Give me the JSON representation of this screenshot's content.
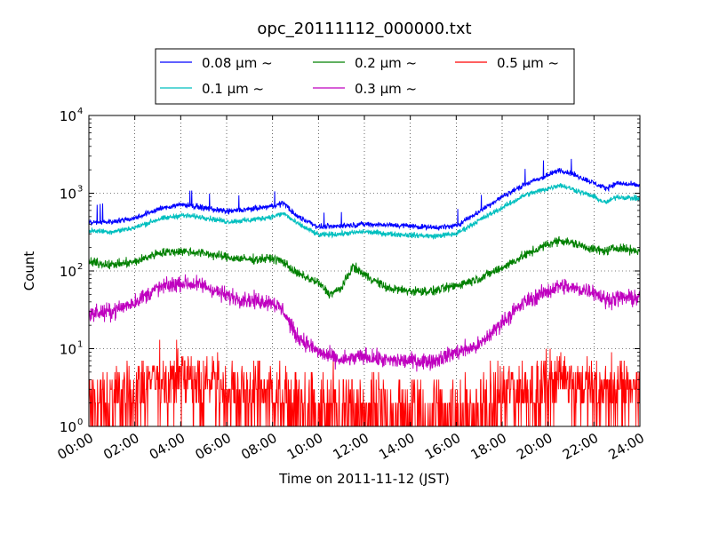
{
  "chart_data": {
    "type": "line",
    "title": "opc_20111112_000000.txt",
    "xlabel": "Time on 2011-11-12 (JST)",
    "ylabel": "Count",
    "xlim": [
      "00:00",
      "24:00"
    ],
    "ylim": [
      1,
      10000
    ],
    "yscale": "log",
    "grid": true,
    "legend_position": "top",
    "x_ticks": [
      "00:00",
      "02:00",
      "04:00",
      "06:00",
      "08:00",
      "10:00",
      "12:00",
      "14:00",
      "16:00",
      "18:00",
      "20:00",
      "22:00",
      "24:00"
    ],
    "y_ticks": [
      {
        "value": 1,
        "base": "10",
        "exp": "0"
      },
      {
        "value": 10,
        "base": "10",
        "exp": "1"
      },
      {
        "value": 100,
        "base": "10",
        "exp": "2"
      },
      {
        "value": 1000,
        "base": "10",
        "exp": "3"
      },
      {
        "value": 10000,
        "base": "10",
        "exp": "4"
      }
    ],
    "series": [
      {
        "name": "0.08 μm ~",
        "color": "#0000ff",
        "noise": 0.03,
        "x_hours": [
          0,
          1,
          2,
          3,
          4,
          5,
          6,
          7,
          8,
          8.5,
          9,
          10,
          11,
          12,
          13,
          14,
          15,
          16,
          17,
          18,
          19,
          20,
          20.5,
          21,
          22,
          22.5,
          23,
          24
        ],
        "values": [
          420,
          430,
          480,
          620,
          720,
          650,
          580,
          620,
          680,
          750,
          520,
          370,
          380,
          400,
          390,
          380,
          360,
          380,
          580,
          900,
          1300,
          1700,
          2000,
          1800,
          1350,
          1150,
          1350,
          1250
        ]
      },
      {
        "name": "0.1 μm ~",
        "color": "#00bfbf",
        "noise": 0.03,
        "x_hours": [
          0,
          1,
          2,
          3,
          4,
          5,
          6,
          7,
          8,
          8.5,
          9,
          10,
          11,
          12,
          13,
          14,
          15,
          16,
          17,
          18,
          19,
          20,
          20.5,
          21,
          22,
          22.5,
          23,
          24
        ],
        "values": [
          330,
          320,
          360,
          460,
          520,
          490,
          430,
          450,
          500,
          550,
          420,
          290,
          300,
          320,
          300,
          290,
          280,
          300,
          450,
          650,
          950,
          1150,
          1280,
          1150,
          900,
          750,
          900,
          850
        ]
      },
      {
        "name": "0.2 μm ~",
        "color": "#008000",
        "noise": 0.05,
        "x_hours": [
          0,
          1,
          2,
          3,
          4,
          5,
          6,
          7,
          8,
          8.5,
          9,
          10,
          10.5,
          11,
          11.5,
          12,
          13,
          14,
          15,
          16,
          17,
          18,
          19,
          20,
          20.5,
          21,
          22,
          22.5,
          23,
          24
        ],
        "values": [
          130,
          120,
          130,
          170,
          180,
          170,
          150,
          140,
          145,
          130,
          95,
          70,
          50,
          60,
          115,
          90,
          60,
          55,
          55,
          65,
          80,
          110,
          160,
          220,
          250,
          230,
          190,
          180,
          200,
          180
        ]
      },
      {
        "name": "0.3 μm ~",
        "color": "#bf00bf",
        "noise": 0.09,
        "x_hours": [
          0,
          1,
          2,
          3,
          4,
          5,
          6,
          7,
          8,
          8.5,
          9,
          10,
          11,
          12,
          13,
          14,
          15,
          16,
          17,
          18,
          19,
          20,
          20.5,
          21,
          22,
          22.5,
          23,
          24
        ],
        "values": [
          28,
          30,
          40,
          60,
          70,
          65,
          48,
          42,
          40,
          30,
          15,
          9,
          7,
          8,
          7,
          7,
          7,
          9,
          11,
          22,
          40,
          55,
          65,
          60,
          55,
          42,
          45,
          45
        ]
      },
      {
        "name": "0.5 μm ~",
        "color": "#ff0000",
        "noise": 0,
        "x_hours": [
          0,
          1,
          2,
          3,
          4,
          5,
          6,
          7,
          8,
          8.5,
          9,
          10,
          11,
          12,
          13,
          14,
          15,
          16,
          17,
          18,
          19,
          20,
          20.5,
          21,
          22,
          22.5,
          23,
          24
        ],
        "values": [
          2,
          2,
          3,
          4,
          5,
          4,
          3,
          3,
          3,
          2,
          2,
          1.5,
          1.5,
          1.5,
          1.5,
          1.5,
          1.5,
          1.5,
          1.5,
          2.5,
          3,
          4,
          5,
          4,
          3,
          3,
          3,
          3
        ]
      }
    ]
  }
}
